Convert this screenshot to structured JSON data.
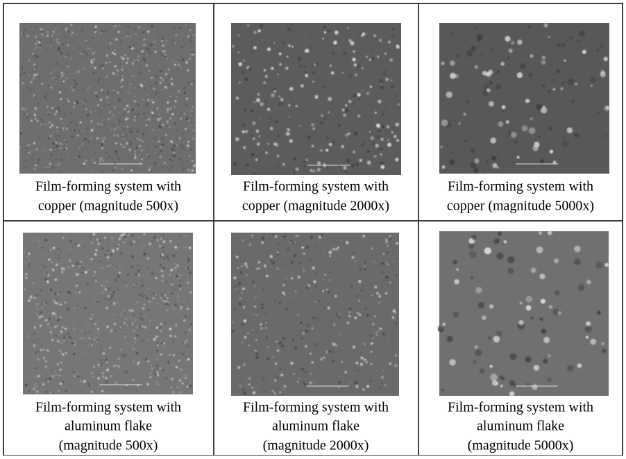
{
  "table": {
    "rows": [
      [
        [
          "Film-forming system with",
          "copper (magnitude 500x)"
        ],
        [
          "Film-forming system with",
          "copper (magnitude 2000x)"
        ],
        [
          "Film-forming system with",
          "copper (magnitude 5000x)"
        ]
      ],
      [
        [
          "Film-forming system with",
          "aluminum flake",
          "(magnitude 500x)"
        ],
        [
          "Film-forming system with",
          "aluminum flake",
          "(magnitude 2000x)"
        ],
        [
          "Film-forming system with",
          "aluminum flake",
          "(magnitude 5000x)"
        ]
      ]
    ]
  }
}
